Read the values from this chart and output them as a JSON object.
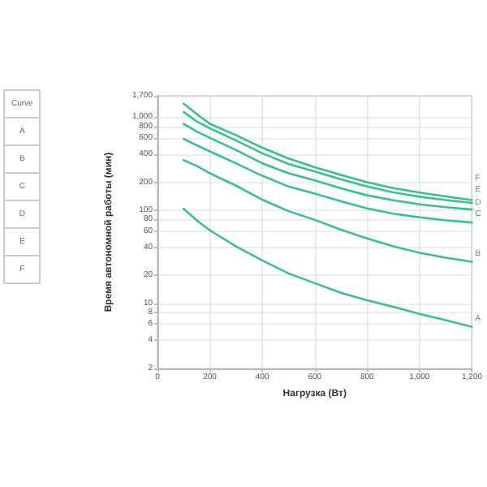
{
  "chart_data": [
    {
      "type": "other",
      "annotations": [
        "Curve",
        "A",
        "B",
        "C",
        "D",
        "E",
        "F"
      ]
    },
    {
      "type": "line",
      "xlabel": "Нагрузка (Вт)",
      "ylabel": "Время автономной работы (мин)",
      "log": "y",
      "grid": true,
      "legend": false,
      "marker": "none",
      "line_style": "solid",
      "x": [
        100,
        150,
        200,
        300,
        400,
        500,
        600,
        700,
        800,
        900,
        1000,
        1100,
        1200
      ],
      "xlim": [
        0,
        1200
      ],
      "xticks": [
        0,
        200,
        400,
        600,
        800,
        {
          "value": 1000,
          "label": "1,000"
        },
        {
          "value": 1200,
          "label": "1,200"
        }
      ],
      "ylim": [
        2,
        1700
      ],
      "yticks": [
        2,
        4,
        6,
        8,
        10,
        20,
        40,
        60,
        80,
        100,
        200,
        400,
        600,
        800,
        {
          "value": 1000,
          "label": "1,000"
        },
        {
          "value": 1700,
          "label": "1,700"
        }
      ],
      "series": [
        {
          "name": "A",
          "color": "#3cc08a",
          "values": [
            104,
            78,
            61,
            41,
            29,
            21,
            16.5,
            13,
            10.8,
            9.2,
            7.7,
            6.6,
            5.6
          ]
        },
        {
          "name": "B",
          "color": "#3cc08a",
          "values": [
            345,
            300,
            250,
            184,
            130,
            98,
            79,
            62,
            50,
            41,
            35,
            31,
            28
          ]
        },
        {
          "name": "C",
          "color": "#3cc08a",
          "values": [
            585,
            500,
            430,
            319,
            235,
            180,
            151,
            125,
            105,
            92,
            84,
            78,
            74
          ]
        },
        {
          "name": "D",
          "color": "#3cc08a",
          "values": [
            850,
            700,
            600,
            444,
            320,
            250,
            210,
            172,
            145,
            128,
            116,
            108,
            102
          ]
        },
        {
          "name": "E",
          "color": "#3cc08a",
          "values": [
            1140,
            900,
            760,
            562,
            410,
            315,
            262,
            215,
            180,
            156,
            140,
            129,
            120
          ]
        },
        {
          "name": "F",
          "color": "#3cc08a",
          "values": [
            1400,
            1080,
            850,
            640,
            470,
            360,
            290,
            240,
            200,
            173,
            155,
            141,
            129
          ]
        }
      ]
    }
  ]
}
